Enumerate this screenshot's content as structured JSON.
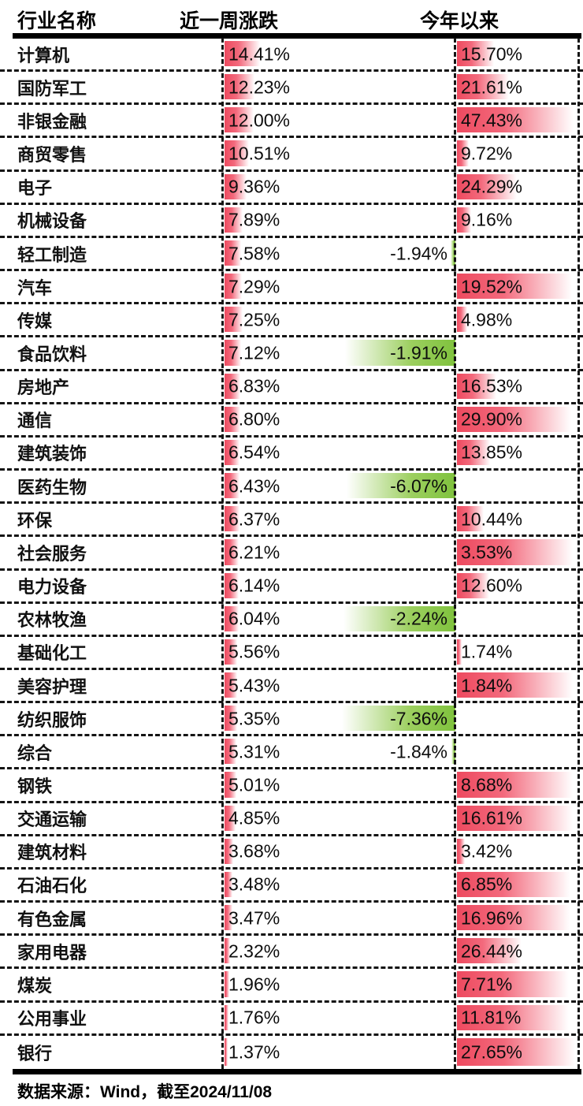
{
  "header": {
    "col_industry": "行业名称",
    "col_week": "近一周涨跌",
    "col_ytd": "今年以来"
  },
  "footer": {
    "source": "数据来源：Wind，截至2024/11/08"
  },
  "colors": {
    "positive_bar": "#ed4a5f",
    "negative_bar": "#7fc23d",
    "text": "#111111",
    "rule": "#000000"
  },
  "chart_data": {
    "type": "table",
    "title": "行业涨跌幅",
    "columns": [
      "行业名称",
      "近一周涨跌",
      "今年以来"
    ],
    "rows": [
      {
        "industry": "计算机",
        "week": "14.41%",
        "week_value": 14.41,
        "ytd": "15.70%",
        "ytd_value": 15.7,
        "ytd_negative": false,
        "week_bar": 45,
        "ytd_bar": 47
      },
      {
        "industry": "国防军工",
        "week": "12.23%",
        "week_value": 12.23,
        "ytd": "21.61%",
        "ytd_value": 21.61,
        "ytd_negative": false,
        "week_bar": 38,
        "ytd_bar": 66
      },
      {
        "industry": "非银金融",
        "week": "12.00%",
        "week_value": 12.0,
        "ytd": "47.43%",
        "ytd_value": 47.43,
        "ytd_negative": false,
        "week_bar": 37,
        "ytd_bar": 148
      },
      {
        "industry": "商贸零售",
        "week": "10.51%",
        "week_value": 10.51,
        "ytd": "9.72%",
        "ytd_value": 9.72,
        "ytd_negative": false,
        "week_bar": 31,
        "ytd_bar": 15
      },
      {
        "industry": "电子",
        "week": "9.36%",
        "week_value": 9.36,
        "ytd": "24.29%",
        "ytd_value": 24.29,
        "ytd_negative": false,
        "week_bar": 28,
        "ytd_bar": 76
      },
      {
        "industry": "机械设备",
        "week": "7.89%",
        "week_value": 7.89,
        "ytd": "9.16%",
        "ytd_value": 9.16,
        "ytd_negative": false,
        "week_bar": 23,
        "ytd_bar": 18
      },
      {
        "industry": "轻工制造",
        "week": "7.58%",
        "week_value": 7.58,
        "ytd": "-1.94%",
        "ytd_value": -1.94,
        "ytd_negative": true,
        "week_bar": 21,
        "ytd_bar": 6
      },
      {
        "industry": "汽车",
        "week": "7.29%",
        "week_value": 7.29,
        "ytd": "19.52%",
        "ytd_value": 19.52,
        "ytd_negative": false,
        "week_bar": 22,
        "ytd_bar": 146
      },
      {
        "industry": "传媒",
        "week": "7.25%",
        "week_value": 7.25,
        "ytd": "4.98%",
        "ytd_value": 4.98,
        "ytd_negative": false,
        "week_bar": 23,
        "ytd_bar": 13
      },
      {
        "industry": "食品饮料",
        "week": "7.12%",
        "week_value": 7.12,
        "ytd": "-1.91%",
        "ytd_value": -1.91,
        "ytd_negative": true,
        "week_bar": 21,
        "ytd_bar": 140
      },
      {
        "industry": "房地产",
        "week": "6.83%",
        "week_value": 6.83,
        "ytd": "16.53%",
        "ytd_value": 16.53,
        "ytd_negative": false,
        "week_bar": 20,
        "ytd_bar": 50
      },
      {
        "industry": "通信",
        "week": "6.80%",
        "week_value": 6.8,
        "ytd": "29.90%",
        "ytd_value": 29.9,
        "ytd_negative": false,
        "week_bar": 20,
        "ytd_bar": 145
      },
      {
        "industry": "建筑装饰",
        "week": "6.54%",
        "week_value": 6.54,
        "ytd": "13.85%",
        "ytd_value": 13.85,
        "ytd_negative": false,
        "week_bar": 19,
        "ytd_bar": 42
      },
      {
        "industry": "医药生物",
        "week": "6.43%",
        "week_value": 6.43,
        "ytd": "-6.07%",
        "ytd_value": -6.07,
        "ytd_negative": true,
        "week_bar": 19,
        "ytd_bar": 138
      },
      {
        "industry": "环保",
        "week": "6.37%",
        "week_value": 6.37,
        "ytd": "10.44%",
        "ytd_value": 10.44,
        "ytd_negative": false,
        "week_bar": 19,
        "ytd_bar": 34
      },
      {
        "industry": "社会服务",
        "week": "6.21%",
        "week_value": 6.21,
        "ytd": "3.53%",
        "ytd_value": 3.53,
        "ytd_negative": false,
        "week_bar": 18,
        "ytd_bar": 147
      },
      {
        "industry": "电力设备",
        "week": "6.14%",
        "week_value": 6.14,
        "ytd": "12.60%",
        "ytd_value": 12.6,
        "ytd_negative": false,
        "week_bar": 18,
        "ytd_bar": 41
      },
      {
        "industry": "农林牧渔",
        "week": "6.04%",
        "week_value": 6.04,
        "ytd": "-2.24%",
        "ytd_value": -2.24,
        "ytd_negative": true,
        "week_bar": 18,
        "ytd_bar": 142
      },
      {
        "industry": "基础化工",
        "week": "5.56%",
        "week_value": 5.56,
        "ytd": "1.74%",
        "ytd_value": 1.74,
        "ytd_negative": false,
        "week_bar": 16,
        "ytd_bar": 6
      },
      {
        "industry": "美容护理",
        "week": "5.43%",
        "week_value": 5.43,
        "ytd": "1.84%",
        "ytd_value": 1.84,
        "ytd_negative": false,
        "week_bar": 16,
        "ytd_bar": 147
      },
      {
        "industry": "纺织服饰",
        "week": "5.35%",
        "week_value": 5.35,
        "ytd": "-7.36%",
        "ytd_value": -7.36,
        "ytd_negative": true,
        "week_bar": 16,
        "ytd_bar": 144
      },
      {
        "industry": "综合",
        "week": "5.31%",
        "week_value": 5.31,
        "ytd": "-1.84%",
        "ytd_value": -1.84,
        "ytd_negative": true,
        "week_bar": 15,
        "ytd_bar": 5
      },
      {
        "industry": "钢铁",
        "week": "5.01%",
        "week_value": 5.01,
        "ytd": "8.68%",
        "ytd_value": 8.68,
        "ytd_negative": false,
        "week_bar": 15,
        "ytd_bar": 147
      },
      {
        "industry": "交通运输",
        "week": "4.85%",
        "week_value": 4.85,
        "ytd": "16.61%",
        "ytd_value": 16.61,
        "ytd_negative": false,
        "week_bar": 14,
        "ytd_bar": 147
      },
      {
        "industry": "建筑材料",
        "week": "3.68%",
        "week_value": 3.68,
        "ytd": "3.42%",
        "ytd_value": 3.42,
        "ytd_negative": false,
        "week_bar": 11,
        "ytd_bar": 10
      },
      {
        "industry": "石油石化",
        "week": "3.48%",
        "week_value": 3.48,
        "ytd": "6.85%",
        "ytd_value": 6.85,
        "ytd_negative": false,
        "week_bar": 10,
        "ytd_bar": 144
      },
      {
        "industry": "有色金属",
        "week": "3.47%",
        "week_value": 3.47,
        "ytd": "16.96%",
        "ytd_value": 16.96,
        "ytd_negative": false,
        "week_bar": 10,
        "ytd_bar": 144
      },
      {
        "industry": "家用电器",
        "week": "2.32%",
        "week_value": 2.32,
        "ytd": "26.44%",
        "ytd_value": 26.44,
        "ytd_negative": false,
        "week_bar": 7,
        "ytd_bar": 82
      },
      {
        "industry": "煤炭",
        "week": "1.96%",
        "week_value": 1.96,
        "ytd": "7.71%",
        "ytd_value": 7.71,
        "ytd_negative": false,
        "week_bar": 6,
        "ytd_bar": 142
      },
      {
        "industry": "公用事业",
        "week": "1.76%",
        "week_value": 1.76,
        "ytd": "11.81%",
        "ytd_value": 11.81,
        "ytd_negative": false,
        "week_bar": 5,
        "ytd_bar": 142
      },
      {
        "industry": "银行",
        "week": "1.37%",
        "week_value": 1.37,
        "ytd": "27.65%",
        "ytd_value": 27.65,
        "ytd_negative": false,
        "week_bar": 4,
        "ytd_bar": 150
      }
    ]
  }
}
